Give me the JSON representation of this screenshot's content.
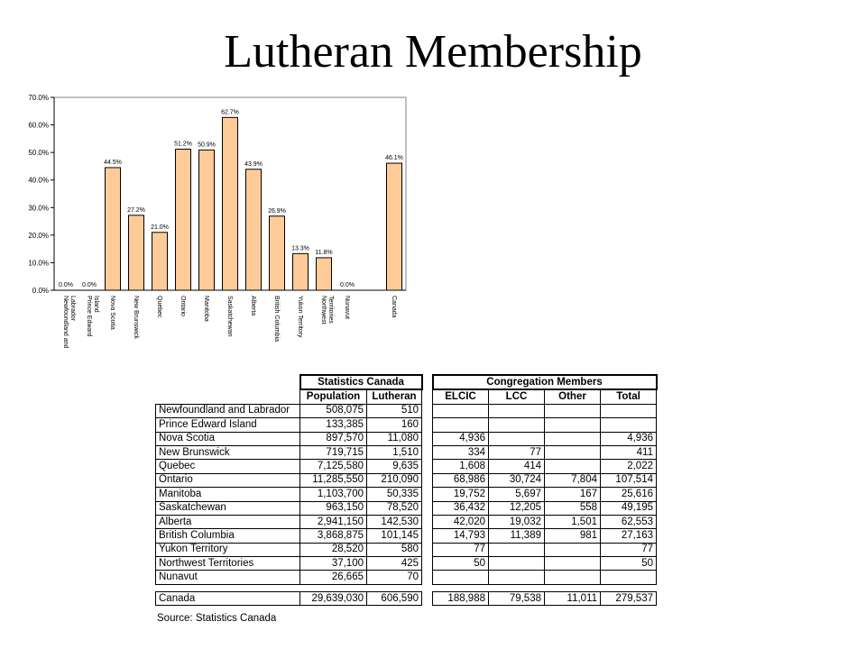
{
  "title": "Lutheran Membership",
  "chart_data": {
    "type": "bar",
    "title": "",
    "xlabel": "",
    "ylabel": "",
    "ylim": [
      0,
      70
    ],
    "yticks": [
      "0.0%",
      "10.0%",
      "20.0%",
      "30.0%",
      "40.0%",
      "50.0%",
      "60.0%",
      "70.0%"
    ],
    "categories": [
      [
        "Newfoundland and",
        "Labrador"
      ],
      [
        "Prince Edward",
        "Island"
      ],
      [
        "Nova Scotia"
      ],
      [
        "New Brunswick"
      ],
      [
        "Quebec"
      ],
      [
        "Ontario"
      ],
      [
        "Manitoba"
      ],
      [
        "Saskatchewan"
      ],
      [
        "Alberta"
      ],
      [
        "British Columbia"
      ],
      [
        "Yukon Territory"
      ],
      [
        "Northwest",
        "Territories"
      ],
      [
        "Nunavut"
      ],
      [],
      [
        "Canada"
      ]
    ],
    "values": [
      0.0,
      0.0,
      44.5,
      27.2,
      21.0,
      51.2,
      50.9,
      62.7,
      43.9,
      26.9,
      13.3,
      11.8,
      0.0,
      null,
      46.1
    ],
    "labels": [
      "0.0%",
      "0.0%",
      "44.5%",
      "27.2%",
      "21.0%",
      "51.2%",
      "50.9%",
      "62.7%",
      "43.9%",
      "26.9%",
      "13.3%",
      "11.8%",
      "0.0%",
      "",
      "46.1%"
    ],
    "bar_color": "#FFCC99",
    "grid": false,
    "legend": "none"
  },
  "table": {
    "group_headers": {
      "stats": "Statistics Canada",
      "congregation": "Congregation Members"
    },
    "col_headers": [
      "Population",
      "Lutheran",
      "ELCIC",
      "LCC",
      "Other",
      "Total"
    ],
    "rows": [
      [
        "Newfoundland and Labrador",
        "508,075",
        "510",
        "",
        "",
        "",
        ""
      ],
      [
        "Prince Edward Island",
        "133,385",
        "160",
        "",
        "",
        "",
        ""
      ],
      [
        "Nova Scotia",
        "897,570",
        "11,080",
        "4,936",
        "",
        "",
        "4,936"
      ],
      [
        "New Brunswick",
        "719,715",
        "1,510",
        "334",
        "77",
        "",
        "411"
      ],
      [
        "Quebec",
        "7,125,580",
        "9,635",
        "1,608",
        "414",
        "",
        "2,022"
      ],
      [
        "Ontario",
        "11,285,550",
        "210,090",
        "68,986",
        "30,724",
        "7,804",
        "107,514"
      ],
      [
        "Manitoba",
        "1,103,700",
        "50,335",
        "19,752",
        "5,697",
        "167",
        "25,616"
      ],
      [
        "Saskatchewan",
        "963,150",
        "78,520",
        "36,432",
        "12,205",
        "558",
        "49,195"
      ],
      [
        "Alberta",
        "2,941,150",
        "142,530",
        "42,020",
        "19,032",
        "1,501",
        "62,553"
      ],
      [
        "British Columbia",
        "3,868,875",
        "101,145",
        "14,793",
        "11,389",
        "981",
        "27,163"
      ],
      [
        "Yukon Territory",
        "28,520",
        "580",
        "77",
        "",
        "",
        "77"
      ],
      [
        "Northwest Territories",
        "37,100",
        "425",
        "50",
        "",
        "",
        "50"
      ],
      [
        "Nunavut",
        "26,665",
        "70",
        "",
        "",
        "",
        ""
      ]
    ],
    "total_row": [
      "Canada",
      "29,639,030",
      "606,590",
      "188,988",
      "79,538",
      "11,011",
      "279,537"
    ],
    "source": "Source: Statistics Canada"
  }
}
